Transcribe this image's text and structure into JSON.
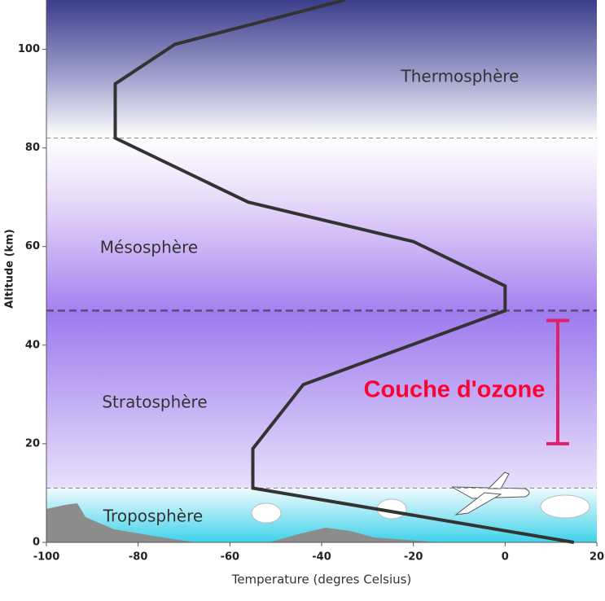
{
  "chart_data": {
    "type": "line",
    "x_label": "Temperature (degres Celsius)",
    "y_label": "Altitude (km)",
    "xlim": [
      -100,
      20
    ],
    "xticks": [
      -100,
      -80,
      -60,
      -40,
      -20,
      0,
      20
    ],
    "ylim": [
      0,
      110
    ],
    "yticks": [
      0,
      20,
      40,
      60,
      80,
      100
    ],
    "series": [
      {
        "color": "#333333",
        "x": [
          15,
          -55,
          -55,
          -44,
          0,
          0,
          -20,
          -56,
          -85,
          -85,
          -72,
          -35
        ],
        "values": [
          0,
          11,
          19,
          32,
          47,
          52,
          61,
          69,
          82,
          93,
          101,
          110
        ]
      }
    ],
    "boundaries": [
      11,
      47,
      82
    ],
    "layers": [
      "Thermosphère",
      "Mésosphère",
      "Stratosphère",
      "Troposphère"
    ],
    "ozone": {
      "label": "Couche d'ozone",
      "color": "#e0206a",
      "range": [
        20,
        45
      ]
    }
  }
}
